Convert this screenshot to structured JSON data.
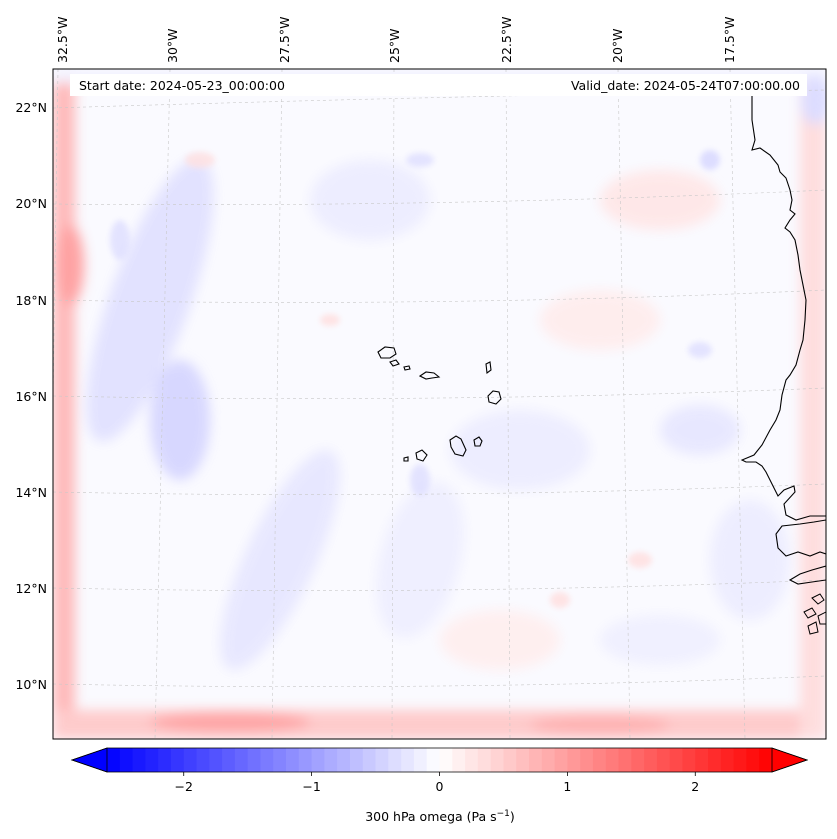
{
  "header": {
    "start_date": "Start date: 2024-05-23_00:00:00",
    "valid_date": "Valid_date: 2024-05-24T07:00:00.00"
  },
  "map": {
    "lon_labels": [
      "32.5°W",
      "30°W",
      "27.5°W",
      "25°W",
      "22.5°W",
      "20°W",
      "17.5°W"
    ],
    "lat_labels": [
      "22°N",
      "20°N",
      "18°N",
      "16°N",
      "14°N",
      "12°N",
      "10°N"
    ]
  },
  "colorbar": {
    "tick_labels": [
      "−2",
      "−1",
      "0",
      "1",
      "2"
    ],
    "label": "300 hPa omega (Pa s",
    "label_exp": "−1",
    "label_close": ")",
    "range": [
      -2.6,
      2.6
    ],
    "colors": {
      "negative": "#0000ff",
      "zero": "#ffffff",
      "positive": "#ff0000"
    }
  }
}
